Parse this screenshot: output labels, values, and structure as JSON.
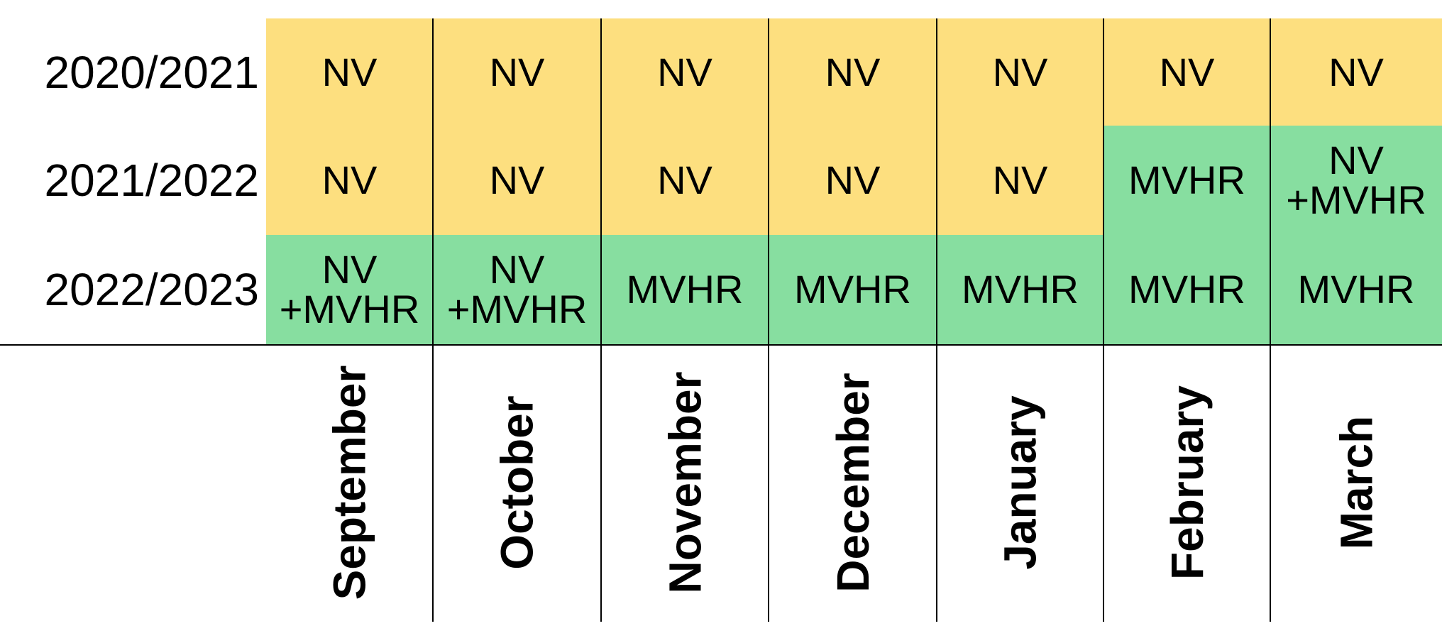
{
  "rows": [
    {
      "label": "2020/2021",
      "cells": [
        "NV",
        "NV",
        "NV",
        "NV",
        "NV",
        "NV",
        "NV"
      ]
    },
    {
      "label": "2021/2022",
      "cells": [
        "NV",
        "NV",
        "NV",
        "NV",
        "NV",
        "MVHR",
        "NV\n+MVHR"
      ]
    },
    {
      "label": "2022/2023",
      "cells": [
        "NV\n+MVHR",
        "NV\n+MVHR",
        "MVHR",
        "MVHR",
        "MVHR",
        "MVHR",
        "MVHR"
      ]
    }
  ],
  "months": [
    "September",
    "October",
    "November",
    "December",
    "January",
    "February",
    "March"
  ],
  "colors": {
    "NV": "#fddf7f",
    "MVHR": "#87dea0",
    "NV\n+MVHR": "#87dea0"
  }
}
